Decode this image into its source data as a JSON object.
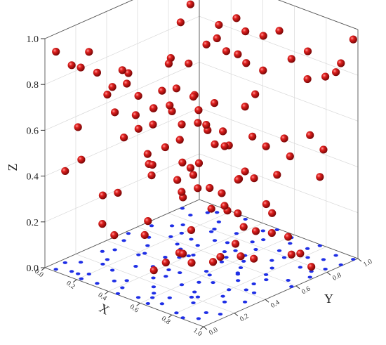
{
  "chart_data": {
    "type": "scatter",
    "title": "",
    "xlabel": "X",
    "ylabel": "Y",
    "zlabel": "Z",
    "xlim": [
      0,
      1
    ],
    "ylim": [
      0,
      1
    ],
    "zlim": [
      0,
      1
    ],
    "x_ticks": [
      "0.0",
      "0.2",
      "0.4",
      "0.6",
      "0.8",
      "1.0"
    ],
    "y_ticks": [
      "0.0",
      "0.2",
      "0.4",
      "0.6",
      "0.8",
      "1.0"
    ],
    "z_ticks": [
      "0.0",
      "0.2",
      "0.4",
      "0.6",
      "0.8",
      "1.0"
    ],
    "grid": true,
    "series": [
      {
        "point_color": "#c81010",
        "marker": "sphere",
        "points": [
          [
            0.05,
            0.02,
            0.95
          ],
          [
            0.12,
            0.05,
            0.9
          ],
          [
            0.2,
            0.08,
            0.97
          ],
          [
            0.3,
            0.03,
            0.92
          ],
          [
            0.42,
            0.07,
            0.95
          ],
          [
            0.55,
            0.04,
            0.88
          ],
          [
            0.68,
            0.06,
            0.93
          ],
          [
            0.8,
            0.03,
            0.98
          ],
          [
            0.92,
            0.05,
            0.91
          ],
          [
            0.08,
            0.15,
            0.85
          ],
          [
            0.25,
            0.18,
            0.8
          ],
          [
            0.38,
            0.14,
            0.86
          ],
          [
            0.52,
            0.17,
            0.78
          ],
          [
            0.66,
            0.13,
            0.84
          ],
          [
            0.78,
            0.16,
            0.9
          ],
          [
            0.9,
            0.12,
            0.82
          ],
          [
            0.15,
            0.25,
            0.72
          ],
          [
            0.3,
            0.28,
            0.66
          ],
          [
            0.45,
            0.24,
            0.74
          ],
          [
            0.6,
            0.27,
            0.7
          ],
          [
            0.75,
            0.22,
            0.76
          ],
          [
            0.88,
            0.26,
            0.68
          ],
          [
            0.1,
            0.35,
            0.6
          ],
          [
            0.22,
            0.38,
            0.55
          ],
          [
            0.36,
            0.33,
            0.62
          ],
          [
            0.5,
            0.36,
            0.58
          ],
          [
            0.64,
            0.34,
            0.52
          ],
          [
            0.8,
            0.37,
            0.63
          ],
          [
            0.95,
            0.32,
            0.57
          ],
          [
            0.06,
            0.45,
            0.45
          ],
          [
            0.18,
            0.48,
            0.4
          ],
          [
            0.33,
            0.44,
            0.48
          ],
          [
            0.47,
            0.46,
            0.42
          ],
          [
            0.62,
            0.43,
            0.38
          ],
          [
            0.76,
            0.47,
            0.44
          ],
          [
            0.91,
            0.42,
            0.5
          ],
          [
            0.12,
            0.55,
            0.32
          ],
          [
            0.27,
            0.58,
            0.28
          ],
          [
            0.41,
            0.54,
            0.35
          ],
          [
            0.56,
            0.57,
            0.3
          ],
          [
            0.7,
            0.53,
            0.26
          ],
          [
            0.85,
            0.56,
            0.33
          ],
          [
            0.04,
            0.65,
            0.22
          ],
          [
            0.2,
            0.68,
            0.18
          ],
          [
            0.35,
            0.63,
            0.25
          ],
          [
            0.49,
            0.66,
            0.2
          ],
          [
            0.63,
            0.64,
            0.15
          ],
          [
            0.78,
            0.67,
            0.24
          ],
          [
            0.93,
            0.62,
            0.19
          ],
          [
            0.14,
            0.75,
            0.12
          ],
          [
            0.29,
            0.78,
            0.1
          ],
          [
            0.43,
            0.74,
            0.14
          ],
          [
            0.58,
            0.77,
            0.08
          ],
          [
            0.72,
            0.73,
            0.12
          ],
          [
            0.87,
            0.76,
            0.06
          ],
          [
            0.09,
            0.85,
            0.92
          ],
          [
            0.24,
            0.88,
            0.86
          ],
          [
            0.39,
            0.84,
            0.94
          ],
          [
            0.53,
            0.87,
            0.89
          ],
          [
            0.67,
            0.83,
            0.96
          ],
          [
            0.82,
            0.86,
            0.9
          ],
          [
            0.97,
            0.82,
            0.84
          ],
          [
            0.16,
            0.95,
            0.76
          ],
          [
            0.31,
            0.98,
            0.82
          ],
          [
            0.46,
            0.94,
            0.7
          ],
          [
            0.61,
            0.97,
            0.78
          ],
          [
            0.75,
            0.93,
            0.74
          ],
          [
            0.9,
            0.96,
            0.8
          ],
          [
            0.03,
            0.1,
            0.4
          ],
          [
            0.17,
            0.2,
            0.3
          ],
          [
            0.34,
            0.1,
            0.2
          ],
          [
            0.57,
            0.12,
            0.1
          ],
          [
            0.73,
            0.2,
            0.15
          ],
          [
            0.96,
            0.15,
            0.25
          ],
          [
            0.07,
            0.3,
            0.12
          ],
          [
            0.23,
            0.41,
            0.08
          ],
          [
            0.48,
            0.29,
            0.06
          ],
          [
            0.69,
            0.38,
            0.09
          ],
          [
            0.84,
            0.49,
            0.11
          ],
          [
            0.99,
            0.58,
            0.14
          ],
          [
            0.11,
            0.71,
            0.5
          ],
          [
            0.28,
            0.81,
            0.55
          ],
          [
            0.44,
            0.91,
            0.6
          ],
          [
            0.59,
            0.69,
            0.65
          ],
          [
            0.74,
            0.79,
            0.52
          ],
          [
            0.89,
            0.89,
            0.48
          ],
          [
            0.13,
            0.92,
            0.36
          ],
          [
            0.37,
            0.72,
            0.42
          ],
          [
            0.51,
            0.82,
            0.46
          ],
          [
            0.65,
            0.92,
            0.38
          ],
          [
            0.81,
            0.6,
            0.56
          ],
          [
            0.98,
            0.71,
            0.62
          ],
          [
            0.02,
            0.52,
            0.7
          ],
          [
            0.19,
            0.62,
            0.78
          ],
          [
            0.4,
            0.52,
            0.84
          ],
          [
            0.54,
            0.62,
            0.9
          ],
          [
            0.71,
            0.52,
            0.96
          ],
          [
            0.86,
            0.42,
            0.99
          ],
          [
            0.21,
            0.02,
            0.52
          ],
          [
            0.45,
            0.01,
            0.44
          ],
          [
            0.63,
            0.02,
            0.36
          ],
          [
            0.86,
            0.01,
            0.28
          ],
          [
            0.01,
            0.88,
            0.2
          ],
          [
            0.26,
            0.99,
            0.16
          ],
          [
            0.5,
            0.99,
            0.24
          ],
          [
            0.77,
            0.99,
            0.3
          ],
          [
            0.99,
            0.98,
            0.96
          ],
          [
            0.99,
            0.9,
            0.88
          ],
          [
            0.32,
            0.55,
            0.99
          ],
          [
            0.58,
            0.45,
            0.99
          ],
          [
            0.44,
            0.35,
            0.9
          ],
          [
            0.7,
            0.25,
            0.86
          ],
          [
            0.16,
            0.05,
            0.64
          ],
          [
            0.6,
            0.08,
            0.58
          ],
          [
            0.83,
            0.3,
            0.72
          ],
          [
            0.28,
            0.66,
            0.04
          ],
          [
            0.52,
            0.7,
            0.03
          ],
          [
            0.38,
            0.48,
            0.02
          ],
          [
            0.67,
            0.58,
            0.05
          ],
          [
            0.94,
            0.76,
            0.02
          ]
        ]
      },
      {
        "point_color": "#1f2fe6",
        "marker": "dot",
        "points": [
          [
            0.05,
            0.02,
            0.0
          ],
          [
            0.12,
            0.05,
            0.0
          ],
          [
            0.2,
            0.08,
            0.0
          ],
          [
            0.3,
            0.03,
            0.0
          ],
          [
            0.42,
            0.07,
            0.0
          ],
          [
            0.55,
            0.04,
            0.0
          ],
          [
            0.68,
            0.06,
            0.0
          ],
          [
            0.8,
            0.03,
            0.0
          ],
          [
            0.92,
            0.05,
            0.0
          ],
          [
            0.08,
            0.15,
            0.0
          ],
          [
            0.25,
            0.18,
            0.0
          ],
          [
            0.38,
            0.14,
            0.0
          ],
          [
            0.52,
            0.17,
            0.0
          ],
          [
            0.66,
            0.13,
            0.0
          ],
          [
            0.78,
            0.16,
            0.0
          ],
          [
            0.9,
            0.12,
            0.0
          ],
          [
            0.15,
            0.25,
            0.0
          ],
          [
            0.3,
            0.28,
            0.0
          ],
          [
            0.45,
            0.24,
            0.0
          ],
          [
            0.6,
            0.27,
            0.0
          ],
          [
            0.75,
            0.22,
            0.0
          ],
          [
            0.88,
            0.26,
            0.0
          ],
          [
            0.1,
            0.35,
            0.0
          ],
          [
            0.22,
            0.38,
            0.0
          ],
          [
            0.36,
            0.33,
            0.0
          ],
          [
            0.5,
            0.36,
            0.0
          ],
          [
            0.64,
            0.34,
            0.0
          ],
          [
            0.8,
            0.37,
            0.0
          ],
          [
            0.95,
            0.32,
            0.0
          ],
          [
            0.06,
            0.45,
            0.0
          ],
          [
            0.18,
            0.48,
            0.0
          ],
          [
            0.33,
            0.44,
            0.0
          ],
          [
            0.47,
            0.46,
            0.0
          ],
          [
            0.62,
            0.43,
            0.0
          ],
          [
            0.76,
            0.47,
            0.0
          ],
          [
            0.91,
            0.42,
            0.0
          ],
          [
            0.12,
            0.55,
            0.0
          ],
          [
            0.27,
            0.58,
            0.0
          ],
          [
            0.41,
            0.54,
            0.0
          ],
          [
            0.56,
            0.57,
            0.0
          ],
          [
            0.7,
            0.53,
            0.0
          ],
          [
            0.85,
            0.56,
            0.0
          ],
          [
            0.04,
            0.65,
            0.0
          ],
          [
            0.2,
            0.68,
            0.0
          ],
          [
            0.35,
            0.63,
            0.0
          ],
          [
            0.49,
            0.66,
            0.0
          ],
          [
            0.63,
            0.64,
            0.0
          ],
          [
            0.78,
            0.67,
            0.0
          ],
          [
            0.93,
            0.62,
            0.0
          ],
          [
            0.14,
            0.75,
            0.0
          ],
          [
            0.29,
            0.78,
            0.0
          ],
          [
            0.43,
            0.74,
            0.0
          ],
          [
            0.58,
            0.77,
            0.0
          ],
          [
            0.72,
            0.73,
            0.0
          ],
          [
            0.87,
            0.76,
            0.0
          ],
          [
            0.09,
            0.85,
            0.0
          ],
          [
            0.24,
            0.88,
            0.0
          ],
          [
            0.39,
            0.84,
            0.0
          ],
          [
            0.53,
            0.87,
            0.0
          ],
          [
            0.67,
            0.83,
            0.0
          ],
          [
            0.82,
            0.86,
            0.0
          ],
          [
            0.97,
            0.82,
            0.0
          ],
          [
            0.16,
            0.95,
            0.0
          ],
          [
            0.31,
            0.98,
            0.0
          ],
          [
            0.46,
            0.94,
            0.0
          ],
          [
            0.61,
            0.97,
            0.0
          ],
          [
            0.75,
            0.93,
            0.0
          ],
          [
            0.9,
            0.96,
            0.0
          ],
          [
            0.03,
            0.1,
            0.0
          ],
          [
            0.17,
            0.2,
            0.0
          ],
          [
            0.34,
            0.1,
            0.0
          ],
          [
            0.57,
            0.12,
            0.0
          ],
          [
            0.73,
            0.2,
            0.0
          ],
          [
            0.96,
            0.15,
            0.0
          ],
          [
            0.07,
            0.3,
            0.0
          ],
          [
            0.23,
            0.41,
            0.0
          ],
          [
            0.48,
            0.29,
            0.0
          ],
          [
            0.69,
            0.38,
            0.0
          ],
          [
            0.84,
            0.49,
            0.0
          ],
          [
            0.99,
            0.58,
            0.0
          ],
          [
            0.11,
            0.71,
            0.0
          ],
          [
            0.28,
            0.81,
            0.0
          ],
          [
            0.44,
            0.91,
            0.0
          ],
          [
            0.59,
            0.69,
            0.0
          ],
          [
            0.74,
            0.79,
            0.0
          ],
          [
            0.89,
            0.89,
            0.0
          ],
          [
            0.13,
            0.92,
            0.0
          ],
          [
            0.37,
            0.72,
            0.0
          ],
          [
            0.51,
            0.82,
            0.0
          ],
          [
            0.65,
            0.92,
            0.0
          ],
          [
            0.81,
            0.6,
            0.0
          ],
          [
            0.98,
            0.71,
            0.0
          ],
          [
            0.02,
            0.52,
            0.0
          ],
          [
            0.19,
            0.62,
            0.0
          ],
          [
            0.4,
            0.52,
            0.0
          ],
          [
            0.54,
            0.62,
            0.0
          ],
          [
            0.71,
            0.52,
            0.0
          ],
          [
            0.86,
            0.42,
            0.0
          ],
          [
            0.21,
            0.02,
            0.0
          ],
          [
            0.45,
            0.01,
            0.0
          ],
          [
            0.63,
            0.02,
            0.0
          ],
          [
            0.86,
            0.01,
            0.0
          ],
          [
            0.01,
            0.88,
            0.0
          ],
          [
            0.26,
            0.99,
            0.0
          ],
          [
            0.5,
            0.99,
            0.0
          ],
          [
            0.77,
            0.99,
            0.0
          ],
          [
            0.99,
            0.98,
            0.0
          ],
          [
            0.99,
            0.9,
            0.0
          ],
          [
            0.32,
            0.55,
            0.0
          ],
          [
            0.58,
            0.45,
            0.0
          ],
          [
            0.44,
            0.35,
            0.0
          ],
          [
            0.7,
            0.25,
            0.0
          ],
          [
            0.16,
            0.05,
            0.0
          ],
          [
            0.6,
            0.08,
            0.0
          ],
          [
            0.83,
            0.3,
            0.0
          ],
          [
            0.28,
            0.66,
            0.0
          ],
          [
            0.52,
            0.7,
            0.0
          ],
          [
            0.38,
            0.48,
            0.0
          ],
          [
            0.67,
            0.58,
            0.0
          ],
          [
            0.94,
            0.76,
            0.0
          ]
        ]
      }
    ]
  }
}
